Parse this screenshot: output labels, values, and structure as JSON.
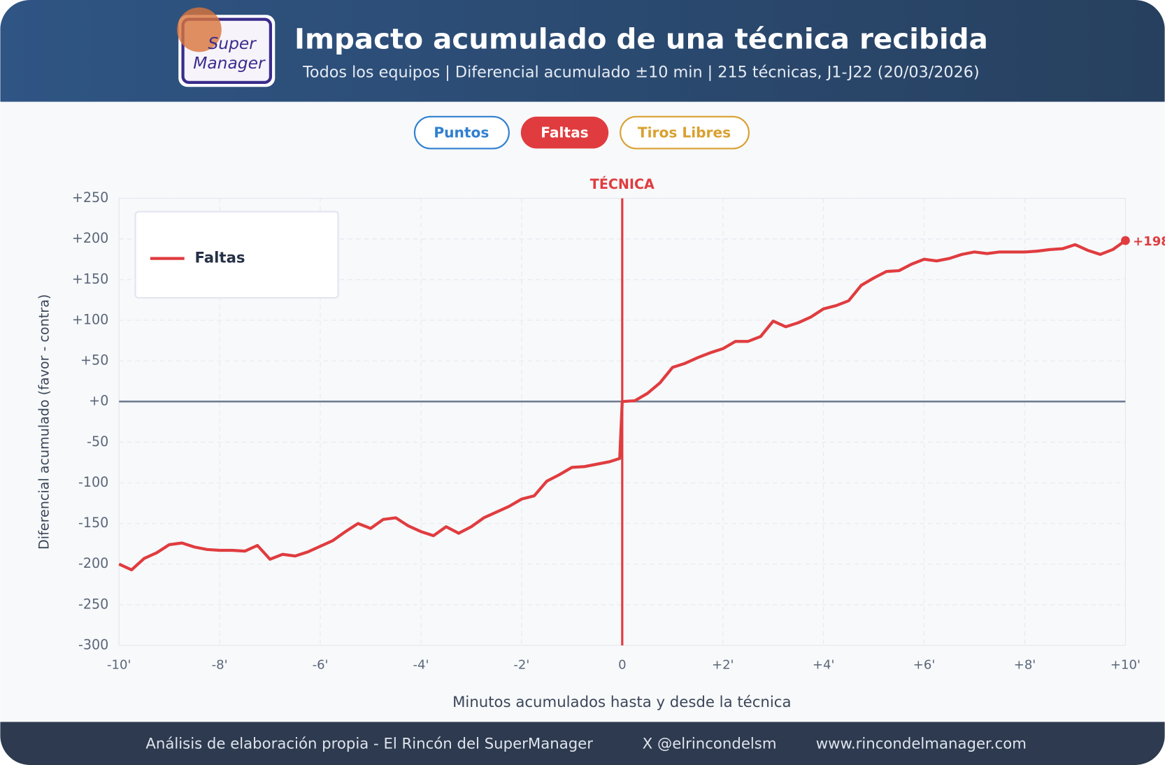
{
  "header": {
    "logo": [
      "Super",
      "Manager"
    ],
    "title": "Impacto acumulado de una técnica recibida",
    "subtitle": "Todos los equipos | Diferencial acumulado ±10 min | 215 técnicas, J1-J22 (20/03/2026)"
  },
  "buttons": [
    "Puntos",
    "Faltas",
    "Tiros Libres"
  ],
  "footer": [
    "Análisis de elaboración propia - El Rincón del SuperManager",
    "X @elrincondelsm",
    "www.rincondelmanager.com"
  ],
  "chart_data": {
    "type": "line",
    "xlabel": "Minutos acumulados hasta y desde la técnica",
    "ylabel": "Diferencial acumulado (favor - contra)",
    "x": [
      -10,
      -9.75,
      -9.5,
      -9.25,
      -9,
      -8.75,
      -8.5,
      -8.25,
      -8,
      -7.75,
      -7.5,
      -7.25,
      -7,
      -6.75,
      -6.5,
      -6.25,
      -6,
      -5.75,
      -5.5,
      -5.25,
      -5,
      -4.75,
      -4.5,
      -4.25,
      -4,
      -3.75,
      -3.5,
      -3.25,
      -3,
      -2.75,
      -2.5,
      -2.25,
      -2,
      -1.75,
      -1.5,
      -1.25,
      -1,
      -0.75,
      -0.5,
      -0.25,
      -0.05,
      0,
      0.25,
      0.5,
      0.75,
      1,
      1.25,
      1.5,
      1.75,
      2,
      2.25,
      2.5,
      2.75,
      3,
      3.25,
      3.5,
      3.75,
      4,
      4.25,
      4.5,
      4.75,
      5,
      5.25,
      5.5,
      5.75,
      6,
      6.25,
      6.5,
      6.75,
      7,
      7.25,
      7.5,
      7.75,
      8,
      8.25,
      8.5,
      8.75,
      9,
      9.25,
      9.5,
      9.75,
      10
    ],
    "series": [
      {
        "name": "Faltas",
        "color": "#e03c3f",
        "values": [
          -200,
          -207,
          -193,
          -186,
          -176,
          -174,
          -179,
          -182,
          -183,
          -183,
          -184,
          -177,
          -194,
          -188,
          -190,
          -185,
          -178,
          -171,
          -160,
          -150,
          -156,
          -145,
          -143,
          -153,
          -160,
          -165,
          -154,
          -162,
          -154,
          -143,
          -136,
          -129,
          -120,
          -116,
          -98,
          -90,
          -81,
          -80,
          -77,
          -74,
          -70,
          0,
          1,
          10,
          23,
          42,
          47,
          54,
          60,
          65,
          74,
          74,
          80,
          99,
          92,
          97,
          104,
          114,
          118,
          124,
          143,
          152,
          160,
          161,
          169,
          175,
          173,
          176,
          181,
          184,
          182,
          184,
          184,
          184,
          185,
          187,
          188,
          193,
          186,
          181,
          187,
          198
        ],
        "value_labels": [
          null,
          null,
          null,
          null,
          null,
          null,
          null,
          null,
          null,
          null,
          null,
          null,
          null,
          null,
          null,
          null,
          null,
          null,
          null,
          null,
          null,
          null,
          null,
          null,
          null,
          null,
          null,
          null,
          null,
          null,
          null,
          null,
          null,
          null,
          null,
          null,
          null,
          null,
          null,
          null,
          null,
          null,
          null,
          null,
          null,
          null,
          null,
          null,
          null,
          null,
          null,
          null,
          null,
          null,
          null,
          null,
          null,
          null,
          null,
          null,
          null,
          null,
          null,
          null,
          null,
          null,
          null,
          null,
          null,
          null,
          null,
          null,
          null,
          null,
          null,
          null,
          null,
          null,
          null,
          null,
          null,
          "+198"
        ]
      }
    ],
    "xlim": [
      -10,
      10
    ],
    "xticks": [
      {
        "value": -10,
        "label": "-10'"
      },
      {
        "value": -8,
        "label": "-8'"
      },
      {
        "value": -6,
        "label": "-6'"
      },
      {
        "value": -4,
        "label": "-4'"
      },
      {
        "value": -2,
        "label": "-2'"
      },
      0,
      {
        "value": 2,
        "label": "+2'"
      },
      {
        "value": 4,
        "label": "+4'"
      },
      {
        "value": 6,
        "label": "+6'"
      },
      {
        "value": 8,
        "label": "+8'"
      },
      {
        "value": 10,
        "label": "+10'"
      }
    ],
    "ylim": [
      -300,
      250
    ],
    "yticks": [
      -300,
      -250,
      -200,
      -150,
      -100,
      -50,
      {
        "value": 0,
        "label": "+0"
      },
      {
        "value": 50,
        "label": "+50"
      },
      {
        "value": 100,
        "label": "+100"
      },
      {
        "value": 150,
        "label": "+150"
      },
      {
        "value": 200,
        "label": "+200"
      },
      {
        "value": 250,
        "label": "+250"
      }
    ],
    "grid": true,
    "legend": "upper left",
    "annotations": [
      {
        "x": 0,
        "text": "TÉCNICA",
        "color": "#e03c3f"
      }
    ]
  }
}
